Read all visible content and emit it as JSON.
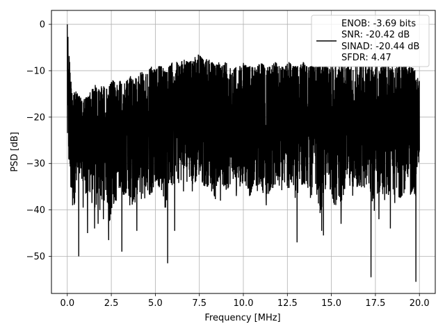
{
  "chart_data": {
    "type": "line",
    "title": "",
    "xlabel": "Frequency [MHz]",
    "ylabel": "PSD [dB]",
    "xlim": [
      -0.9,
      20.9
    ],
    "ylim": [
      -58,
      3
    ],
    "x_ticks": [
      0.0,
      2.5,
      5.0,
      7.5,
      10.0,
      12.5,
      15.0,
      17.5,
      20.0
    ],
    "x_tick_labels": [
      "0.0",
      "2.5",
      "5.0",
      "7.5",
      "10.0",
      "12.5",
      "15.0",
      "17.5",
      "20.0"
    ],
    "y_ticks": [
      0,
      -10,
      -20,
      -30,
      -40,
      -50
    ],
    "y_tick_labels": [
      "0",
      "−10",
      "−20",
      "−30",
      "−40",
      "−50"
    ],
    "grid": true,
    "legend": {
      "placement": "upper-right",
      "entries": [
        "ENOB: -3.69 bits",
        "SNR: -20.42 dB",
        "SINAD: -20.44 dB",
        "SFDR: 4.47"
      ]
    },
    "series": [
      {
        "color": "#000000",
        "x": [
          0.0,
          0.2,
          0.4,
          0.6,
          0.8,
          1.0,
          1.2,
          1.4,
          1.6,
          1.8,
          2.0,
          2.2,
          2.4,
          2.6,
          2.8,
          3.0,
          3.2,
          3.4,
          3.6,
          3.8,
          4.0,
          4.2,
          4.4,
          4.6,
          4.8,
          5.0,
          5.2,
          5.4,
          5.6,
          5.8,
          6.0,
          6.2,
          6.4,
          6.6,
          6.8,
          7.0,
          7.2,
          7.4,
          7.6,
          7.8,
          8.0,
          8.2,
          8.4,
          8.6,
          8.8,
          9.0,
          9.2,
          9.4,
          9.6,
          9.8,
          10.0,
          10.2,
          10.4,
          10.6,
          10.8,
          11.0,
          11.2,
          11.4,
          11.6,
          11.8,
          12.0,
          12.2,
          12.4,
          12.6,
          12.8,
          13.0,
          13.2,
          13.4,
          13.6,
          13.8,
          14.0,
          14.2,
          14.4,
          14.6,
          14.8,
          15.0,
          15.2,
          15.4,
          15.6,
          15.8,
          16.0,
          16.2,
          16.4,
          16.6,
          16.8,
          17.0,
          17.2,
          17.4,
          17.6,
          17.8,
          18.0,
          18.2,
          18.4,
          18.6,
          18.8,
          19.0,
          19.2,
          19.4,
          19.6,
          19.8,
          20.0
        ],
        "upper": [
          0,
          -12,
          -14,
          -15,
          -16,
          -16,
          -15,
          -14,
          -13,
          -14,
          -13,
          -14,
          -13,
          -12,
          -13,
          -12,
          -13,
          -12,
          -11,
          -12,
          -11,
          -10,
          -11,
          -10,
          -9,
          -10,
          -9,
          -9,
          -10,
          -9,
          -8,
          -8,
          -9,
          -7,
          -8,
          -8,
          -7,
          -6,
          -7,
          -8,
          -7,
          -8,
          -9,
          -8,
          -9,
          -8,
          -9,
          -10,
          -9,
          -9,
          -8,
          -9,
          -9,
          -9,
          -9,
          -8,
          -9,
          -9,
          -9,
          -8,
          -9,
          -9,
          -9,
          -8,
          -9,
          -9,
          -9,
          -8,
          -9,
          -9,
          -9,
          -9,
          -9,
          -9,
          -9,
          -9,
          -9,
          -9,
          -9,
          -9,
          -9,
          -9,
          -9,
          -9,
          -9,
          -9,
          -9,
          -9,
          -9,
          -9,
          -9,
          -9,
          -9,
          -9,
          -9,
          -9,
          -9,
          -9,
          -9,
          -9,
          -12
        ],
        "lower": [
          -26,
          -36,
          -39,
          -34,
          -33,
          -36,
          -38,
          -34,
          -41,
          -35,
          -40,
          -36,
          -43,
          -39,
          -38,
          -35,
          -37,
          -36,
          -38,
          -40,
          -36,
          -38,
          -35,
          -36,
          -38,
          -34,
          -35,
          -36,
          -40,
          -34,
          -35,
          -33,
          -35,
          -31,
          -34,
          -33,
          -36,
          -32,
          -34,
          -35,
          -35,
          -34,
          -38,
          -33,
          -35,
          -36,
          -35,
          -33,
          -36,
          -35,
          -34,
          -35,
          -37,
          -34,
          -36,
          -34,
          -38,
          -37,
          -35,
          -36,
          -35,
          -36,
          -34,
          -36,
          -35,
          -39,
          -35,
          -35,
          -34,
          -38,
          -35,
          -37,
          -42,
          -36,
          -35,
          -36,
          -40,
          -37,
          -39,
          -35,
          -35,
          -37,
          -36,
          -35,
          -36,
          -35,
          -36,
          -41,
          -37,
          -36,
          -38,
          -37,
          -36,
          -37,
          -38,
          -37,
          -36,
          -38,
          -36,
          -37,
          -28
        ],
        "peaks": [
          {
            "x": 0.0,
            "y": 0
          },
          {
            "x": 0.2,
            "y": -35
          },
          {
            "x": 0.3,
            "y": -39
          },
          {
            "x": 0.65,
            "y": -50
          },
          {
            "x": 0.9,
            "y": -39.5
          },
          {
            "x": 1.15,
            "y": -45
          },
          {
            "x": 1.4,
            "y": -38.5
          },
          {
            "x": 1.55,
            "y": -44
          },
          {
            "x": 1.75,
            "y": -43
          },
          {
            "x": 1.85,
            "y": -40
          },
          {
            "x": 2.05,
            "y": -42
          },
          {
            "x": 2.35,
            "y": -46.5
          },
          {
            "x": 3.1,
            "y": -49
          },
          {
            "x": 3.55,
            "y": -39
          },
          {
            "x": 3.95,
            "y": -44.5
          },
          {
            "x": 4.4,
            "y": -37.5
          },
          {
            "x": 5.55,
            "y": -39.5
          },
          {
            "x": 5.7,
            "y": -51.5
          },
          {
            "x": 6.1,
            "y": -44.5
          },
          {
            "x": 6.6,
            "y": -36
          },
          {
            "x": 7.1,
            "y": -36
          },
          {
            "x": 8.2,
            "y": -36
          },
          {
            "x": 8.7,
            "y": -38
          },
          {
            "x": 9.6,
            "y": -37
          },
          {
            "x": 10.35,
            "y": -37
          },
          {
            "x": 11.3,
            "y": -39
          },
          {
            "x": 13.05,
            "y": -47
          },
          {
            "x": 14.45,
            "y": -44.5
          },
          {
            "x": 14.55,
            "y": -45.5
          },
          {
            "x": 15.55,
            "y": -43
          },
          {
            "x": 17.25,
            "y": -54.5
          },
          {
            "x": 17.7,
            "y": -42
          },
          {
            "x": 18.35,
            "y": -44
          },
          {
            "x": 18.6,
            "y": -38.5
          },
          {
            "x": 19.8,
            "y": -55.5
          }
        ]
      }
    ]
  }
}
